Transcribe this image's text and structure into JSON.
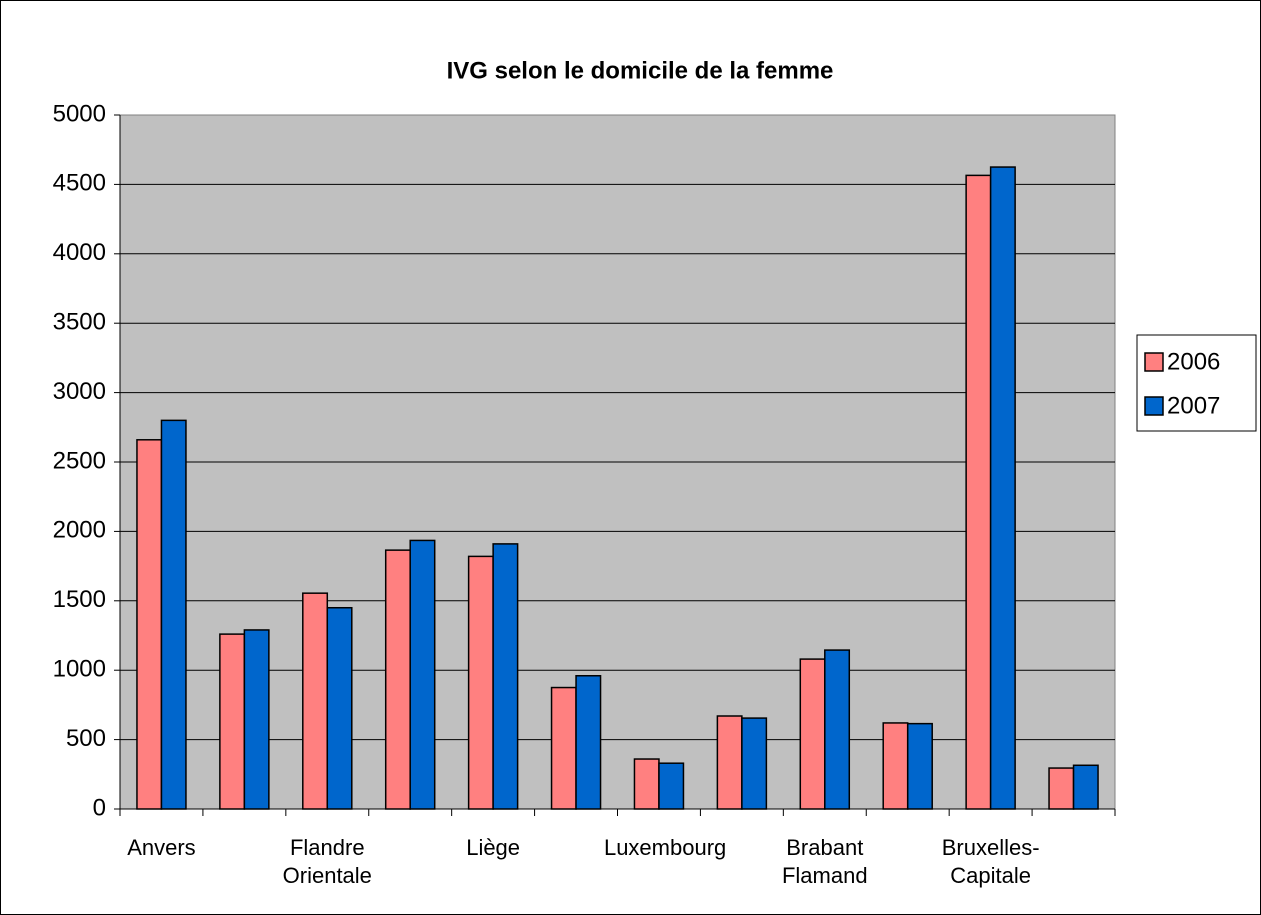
{
  "chart_data": {
    "type": "bar",
    "title": "IVG selon le domicile de la femme",
    "categories": [
      "Anvers",
      null,
      "Flandre Orientale",
      null,
      "Liège",
      null,
      "Luxembourg",
      null,
      "Brabant Flamand",
      null,
      "Bruxelles-Capitale",
      null
    ],
    "series": [
      {
        "name": "2006",
        "color": "#ff8080",
        "values": [
          2660,
          1260,
          1555,
          1865,
          1820,
          875,
          360,
          670,
          1080,
          620,
          4565,
          295
        ]
      },
      {
        "name": "2007",
        "color": "#0066cc",
        "values": [
          2800,
          1290,
          1450,
          1935,
          1910,
          960,
          330,
          655,
          1145,
          615,
          4625,
          315
        ]
      }
    ],
    "ylim": [
      0,
      5000
    ],
    "yticks": [
      0,
      500,
      1000,
      1500,
      2000,
      2500,
      3000,
      3500,
      4000,
      4500,
      5000
    ],
    "grid": true,
    "legend": "right"
  }
}
